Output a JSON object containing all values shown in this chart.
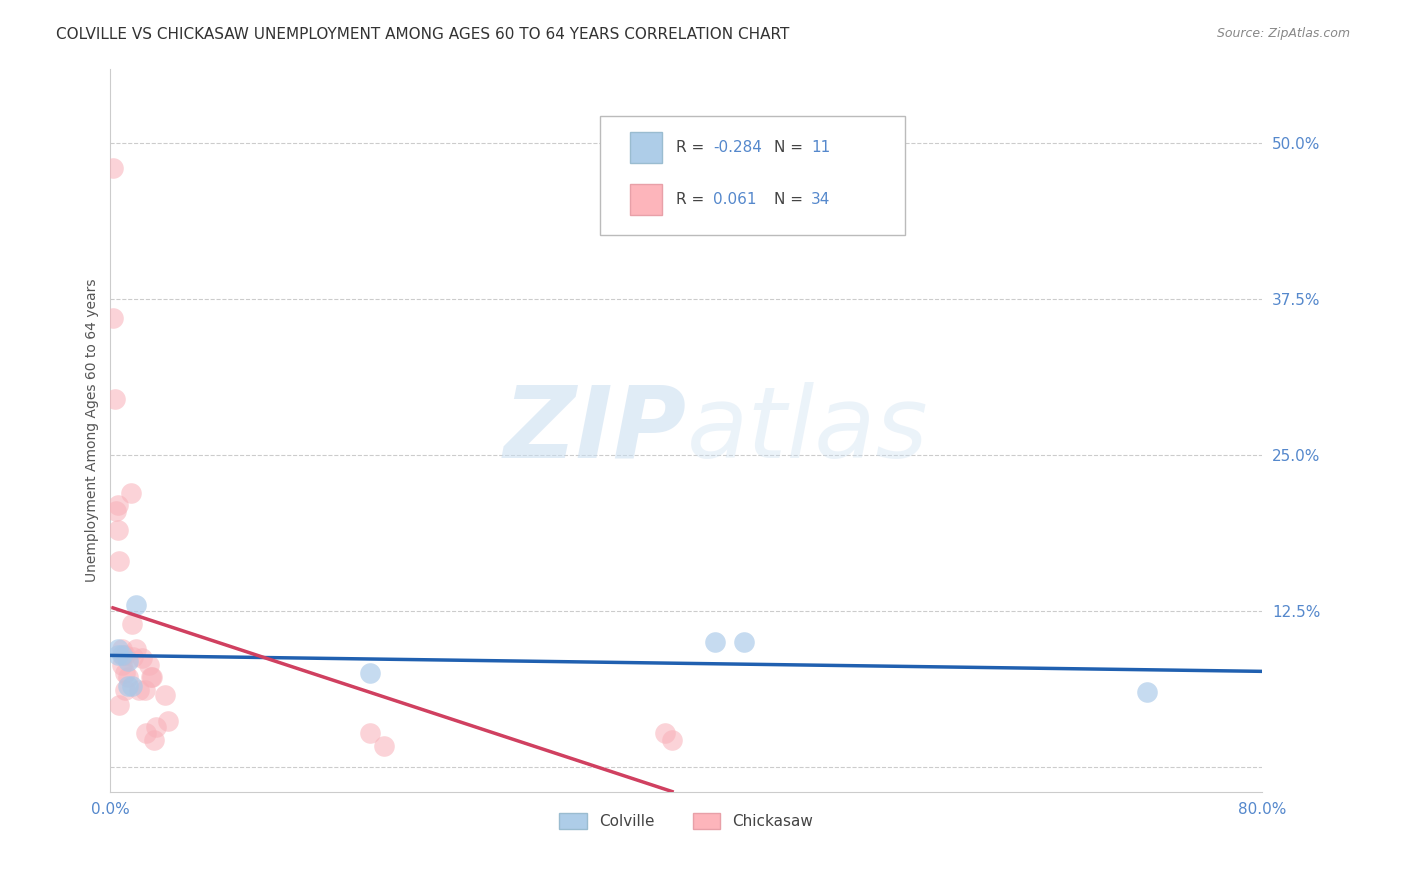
{
  "title": "COLVILLE VS CHICKASAW UNEMPLOYMENT AMONG AGES 60 TO 64 YEARS CORRELATION CHART",
  "source": "Source: ZipAtlas.com",
  "ylabel": "Unemployment Among Ages 60 to 64 years",
  "xlim": [
    0.0,
    0.8
  ],
  "ylim": [
    -0.02,
    0.56
  ],
  "yticks": [
    0.0,
    0.125,
    0.25,
    0.375,
    0.5
  ],
  "ytick_labels": [
    "",
    "12.5%",
    "25.0%",
    "37.5%",
    "50.0%"
  ],
  "xticks": [
    0.0,
    0.2,
    0.4,
    0.6,
    0.8
  ],
  "xtick_labels": [
    "0.0%",
    "",
    "",
    "",
    "80.0%"
  ],
  "colville_color": "#a8c8e8",
  "chickasaw_color": "#f8b0b8",
  "colville_R": -0.284,
  "colville_N": 11,
  "chickasaw_R": 0.061,
  "chickasaw_N": 34,
  "colville_x": [
    0.005,
    0.005,
    0.008,
    0.012,
    0.012,
    0.015,
    0.018,
    0.18,
    0.42,
    0.44,
    0.72
  ],
  "colville_y": [
    0.095,
    0.09,
    0.09,
    0.085,
    0.065,
    0.065,
    0.13,
    0.075,
    0.1,
    0.1,
    0.06
  ],
  "chickasaw_x": [
    0.002,
    0.002,
    0.003,
    0.004,
    0.005,
    0.005,
    0.006,
    0.006,
    0.008,
    0.008,
    0.009,
    0.01,
    0.01,
    0.01,
    0.012,
    0.014,
    0.015,
    0.016,
    0.018,
    0.02,
    0.022,
    0.024,
    0.025,
    0.027,
    0.028,
    0.029,
    0.03,
    0.032,
    0.038,
    0.04,
    0.18,
    0.19,
    0.385,
    0.39
  ],
  "chickasaw_y": [
    0.48,
    0.36,
    0.295,
    0.205,
    0.21,
    0.19,
    0.165,
    0.05,
    0.095,
    0.082,
    0.09,
    0.09,
    0.075,
    0.062,
    0.072,
    0.22,
    0.115,
    0.088,
    0.095,
    0.062,
    0.087,
    0.062,
    0.027,
    0.082,
    0.072,
    0.072,
    0.022,
    0.032,
    0.058,
    0.037,
    0.027,
    0.017,
    0.027,
    0.022
  ],
  "colville_line_color": "#2060b0",
  "chickasaw_solid_color": "#d04060",
  "chickasaw_dashed_color": "#e8909a",
  "watermark_zip": "ZIP",
  "watermark_atlas": "atlas",
  "background_color": "#ffffff",
  "grid_color": "#cccccc",
  "title_fontsize": 11,
  "axis_tick_color": "#5588cc"
}
